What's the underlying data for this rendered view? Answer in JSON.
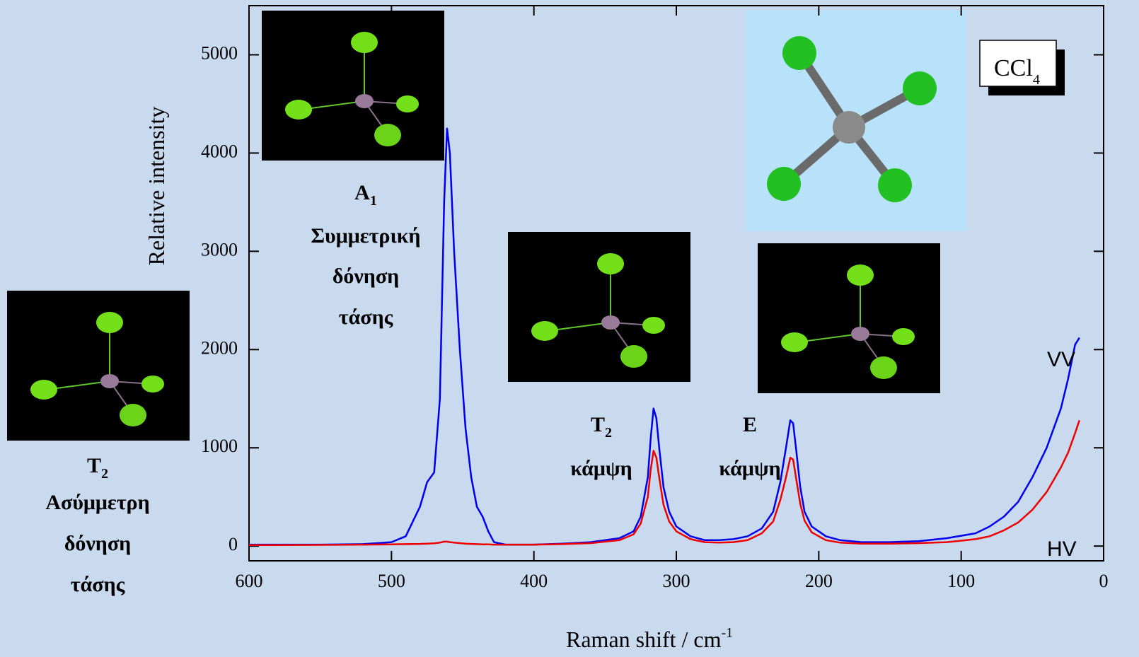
{
  "chart_data": {
    "type": "line",
    "x_label": "Raman shift / cm",
    "x_label_sup": "-1",
    "y_label": "Relative intensity",
    "box_label": "CCl",
    "box_label_sub": "4",
    "xlim": [
      600,
      0
    ],
    "ylim": [
      -150,
      5500
    ],
    "xticks": [
      600,
      500,
      400,
      300,
      200,
      100,
      0
    ],
    "yticks": [
      0,
      1000,
      2000,
      3000,
      4000,
      5000
    ],
    "x": [
      600,
      550,
      520,
      500,
      490,
      480,
      475,
      470,
      466,
      463,
      461,
      459,
      456,
      452,
      448,
      444,
      440,
      436,
      432,
      428,
      420,
      400,
      380,
      360,
      340,
      330,
      325,
      320,
      318,
      316,
      314,
      312,
      309,
      305,
      300,
      290,
      280,
      270,
      260,
      250,
      240,
      232,
      227,
      223,
      220,
      218,
      216,
      213,
      210,
      205,
      195,
      185,
      170,
      150,
      130,
      110,
      90,
      80,
      70,
      60,
      50,
      40,
      30,
      25,
      20,
      17
    ],
    "series": [
      {
        "name": "VV",
        "color": "#0000ee",
        "values": [
          15,
          15,
          20,
          40,
          100,
          400,
          650,
          750,
          1500,
          3500,
          4250,
          4000,
          3000,
          2000,
          1200,
          700,
          400,
          300,
          150,
          40,
          15,
          15,
          25,
          40,
          80,
          150,
          300,
          700,
          1100,
          1400,
          1300,
          1000,
          600,
          350,
          200,
          100,
          60,
          60,
          70,
          100,
          180,
          350,
          650,
          1000,
          1280,
          1250,
          1000,
          600,
          350,
          200,
          100,
          60,
          40,
          40,
          50,
          80,
          130,
          200,
          300,
          450,
          700,
          1000,
          1400,
          1700,
          2050,
          2120
        ]
      },
      {
        "name": "HV",
        "color": "#ee0000",
        "values": [
          10,
          12,
          15,
          18,
          20,
          22,
          25,
          28,
          35,
          45,
          45,
          40,
          35,
          30,
          25,
          22,
          20,
          18,
          17,
          15,
          15,
          15,
          20,
          30,
          60,
          120,
          230,
          500,
          780,
          970,
          900,
          700,
          420,
          250,
          150,
          70,
          40,
          35,
          40,
          60,
          130,
          250,
          470,
          700,
          900,
          880,
          700,
          430,
          260,
          140,
          60,
          35,
          25,
          25,
          30,
          40,
          70,
          100,
          160,
          240,
          370,
          550,
          800,
          950,
          1150,
          1280
        ]
      }
    ],
    "annotations": [
      {
        "symbol": "A",
        "subscript": "1",
        "lines": [
          "Συμμετρική",
          "δόνηση",
          "τάσης"
        ]
      },
      {
        "symbol": "T",
        "subscript": "2",
        "lines": [
          "κάμψη"
        ]
      },
      {
        "symbol": "E",
        "lines": [
          "κάμψη"
        ]
      },
      {
        "symbol": "T",
        "subscript": "2",
        "lines": [
          "Ασύμμετρη",
          "δόνηση",
          "τάσης"
        ]
      }
    ]
  }
}
